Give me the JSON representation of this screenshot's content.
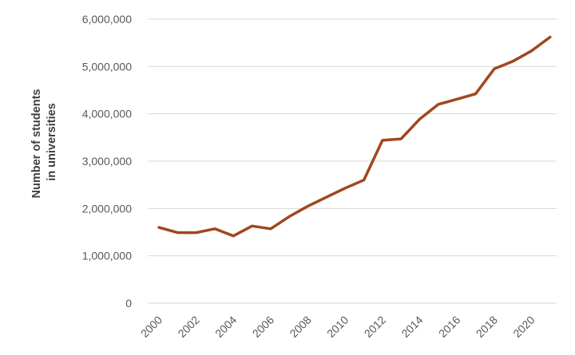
{
  "chart_data": {
    "type": "line",
    "title": "",
    "xlabel": "",
    "ylabel": "Number of students in universities",
    "ylabel_lines": [
      "Number of students",
      "in universities"
    ],
    "x": [
      2000,
      2001,
      2002,
      2003,
      2004,
      2005,
      2006,
      2007,
      2008,
      2009,
      2010,
      2011,
      2012,
      2013,
      2014,
      2015,
      2016,
      2017,
      2018,
      2019,
      2020,
      2021
    ],
    "x_tick_labels": [
      "2000",
      "2002",
      "2004",
      "2006",
      "2008",
      "2010",
      "2012",
      "2014",
      "2016",
      "2018",
      "2020"
    ],
    "y_tick_labels": [
      "0",
      "1,000,000",
      "2,000,000",
      "3,000,000",
      "4,000,000",
      "5,000,000",
      "6,000,000"
    ],
    "ylim": [
      0,
      6000000
    ],
    "grid": true,
    "legend": "none",
    "series": [
      {
        "color": "#a0471e",
        "values": [
          1600000,
          1490000,
          1490000,
          1570000,
          1420000,
          1630000,
          1570000,
          1830000,
          2050000,
          2240000,
          2430000,
          2600000,
          3440000,
          3470000,
          3890000,
          4200000,
          4310000,
          4420000,
          4950000,
          5110000,
          5330000,
          5620000
        ]
      }
    ]
  }
}
